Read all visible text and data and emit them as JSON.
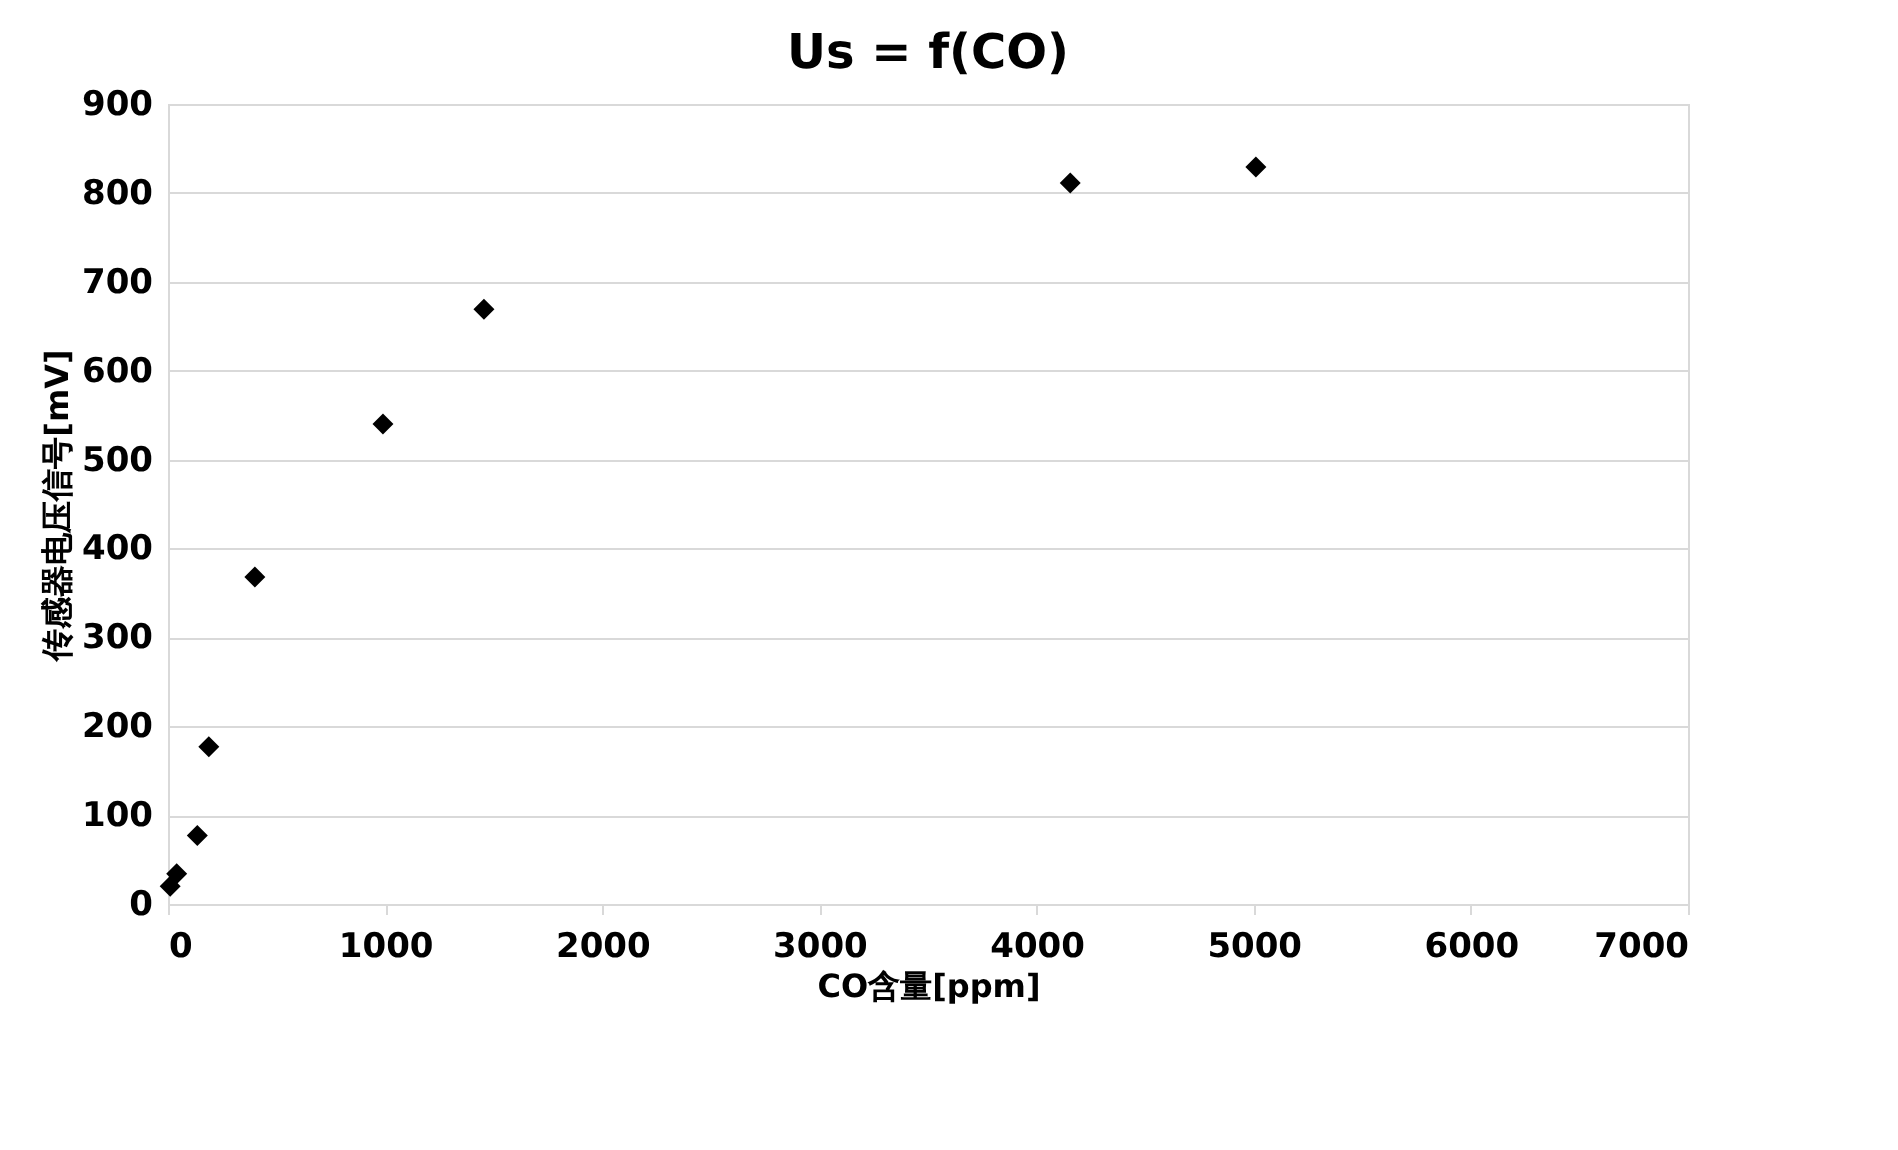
{
  "chart_data": {
    "type": "scatter",
    "title": "Us = f(CO)",
    "xlabel": "CO含量[ppm]",
    "ylabel": "传感器电压信号[mV]",
    "x": [
      10,
      40,
      135,
      188,
      400,
      990,
      1455,
      4155,
      5010
    ],
    "series": [
      {
        "color": "#000000",
        "values": [
          20,
          34,
          77,
          177,
          368,
          540,
          669,
          811,
          829
        ]
      }
    ],
    "xlim": [
      0,
      7000
    ],
    "xticks": [
      0,
      1000,
      2000,
      3000,
      4000,
      5000,
      6000,
      7000
    ],
    "ylim": [
      0,
      900
    ],
    "yticks": [
      0,
      100,
      200,
      300,
      400,
      500,
      600,
      700,
      800,
      900
    ],
    "grid": "y",
    "marker": "diamond"
  }
}
